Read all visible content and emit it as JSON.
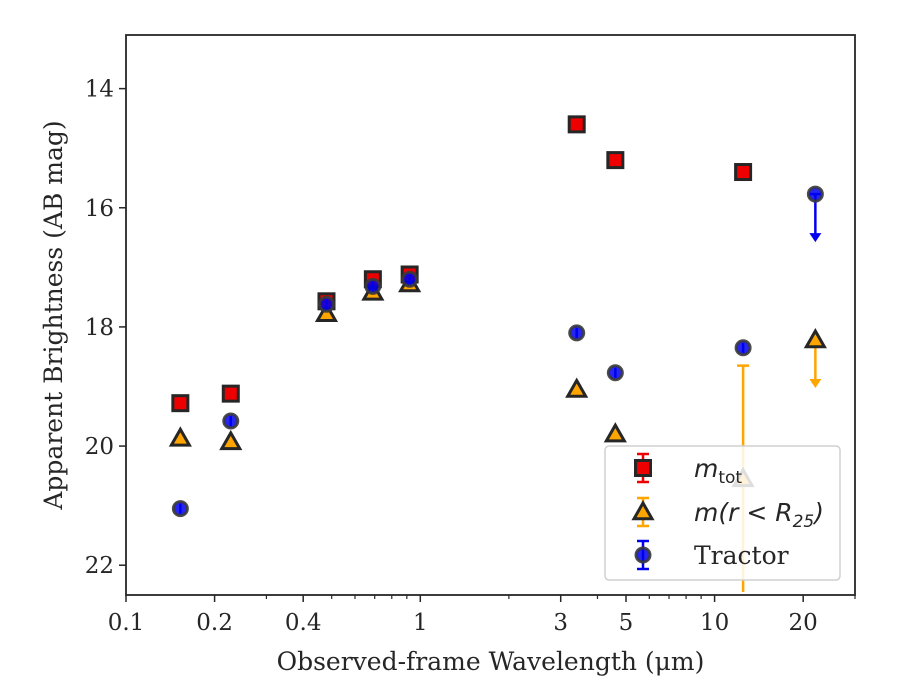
{
  "chart_data": {
    "type": "scatter",
    "xlabel": "Observed-frame Wavelength (μm)",
    "ylabel": "Apparent Brightness (AB mag)",
    "xscale": "log",
    "yaxis_inverted": true,
    "xlim": [
      0.1,
      30
    ],
    "ylim": [
      22.5,
      13.1
    ],
    "xticks": [
      {
        "value": 0.1,
        "label": "0.1"
      },
      {
        "value": 0.2,
        "label": "0.2"
      },
      {
        "value": 0.4,
        "label": "0.4"
      },
      {
        "value": 1,
        "label": "1"
      },
      {
        "value": 3,
        "label": "3"
      },
      {
        "value": 5,
        "label": "5"
      },
      {
        "value": 10,
        "label": "10"
      },
      {
        "value": 20,
        "label": "20"
      }
    ],
    "yticks": [
      {
        "value": 14,
        "label": "14"
      },
      {
        "value": 16,
        "label": "16"
      },
      {
        "value": 18,
        "label": "18"
      },
      {
        "value": 20,
        "label": "20"
      },
      {
        "value": 22,
        "label": "22"
      }
    ],
    "grid": false,
    "legend_position": "lower-right",
    "series": [
      {
        "name": "m_tot",
        "legend_main": "m",
        "legend_sub": "tot",
        "marker": "square",
        "color": "#ee0000",
        "edgecolor": "#262626",
        "errcolor": "#ee0000",
        "points": [
          {
            "x": 0.153,
            "y": 19.28
          },
          {
            "x": 0.227,
            "y": 19.12
          },
          {
            "x": 0.48,
            "y": 17.57
          },
          {
            "x": 0.69,
            "y": 17.2
          },
          {
            "x": 0.92,
            "y": 17.12
          },
          {
            "x": 3.4,
            "y": 14.6
          },
          {
            "x": 4.6,
            "y": 15.2
          },
          {
            "x": 12.5,
            "y": 15.4
          }
        ]
      },
      {
        "name": "m(r < R25)",
        "legend_main": "m(r < R",
        "legend_sub": "25",
        "legend_tail": ")",
        "marker": "triangle",
        "color": "#ffa500",
        "edgecolor": "#262626",
        "errcolor": "#ffa500",
        "points": [
          {
            "x": 0.153,
            "y": 19.87
          },
          {
            "x": 0.227,
            "y": 19.93
          },
          {
            "x": 0.48,
            "y": 17.78
          },
          {
            "x": 0.69,
            "y": 17.42
          },
          {
            "x": 0.92,
            "y": 17.28
          },
          {
            "x": 3.4,
            "y": 19.05
          },
          {
            "x": 4.6,
            "y": 19.8
          },
          {
            "x": 12.5,
            "y": 20.55,
            "yerr": 1.9
          },
          {
            "x": 22.0,
            "y": 18.22,
            "upper_limit": true
          }
        ]
      },
      {
        "name": "Tractor",
        "marker": "circle",
        "color": "#0000ee",
        "edgecolor": "#262626",
        "errcolor": "#0000ee",
        "points": [
          {
            "x": 0.153,
            "y": 21.05
          },
          {
            "x": 0.227,
            "y": 19.58
          },
          {
            "x": 0.48,
            "y": 17.62
          },
          {
            "x": 0.69,
            "y": 17.32
          },
          {
            "x": 0.92,
            "y": 17.2
          },
          {
            "x": 3.4,
            "y": 18.1
          },
          {
            "x": 4.6,
            "y": 18.77
          },
          {
            "x": 12.5,
            "y": 18.35
          },
          {
            "x": 22.0,
            "y": 15.77,
            "upper_limit": true
          }
        ]
      }
    ]
  }
}
